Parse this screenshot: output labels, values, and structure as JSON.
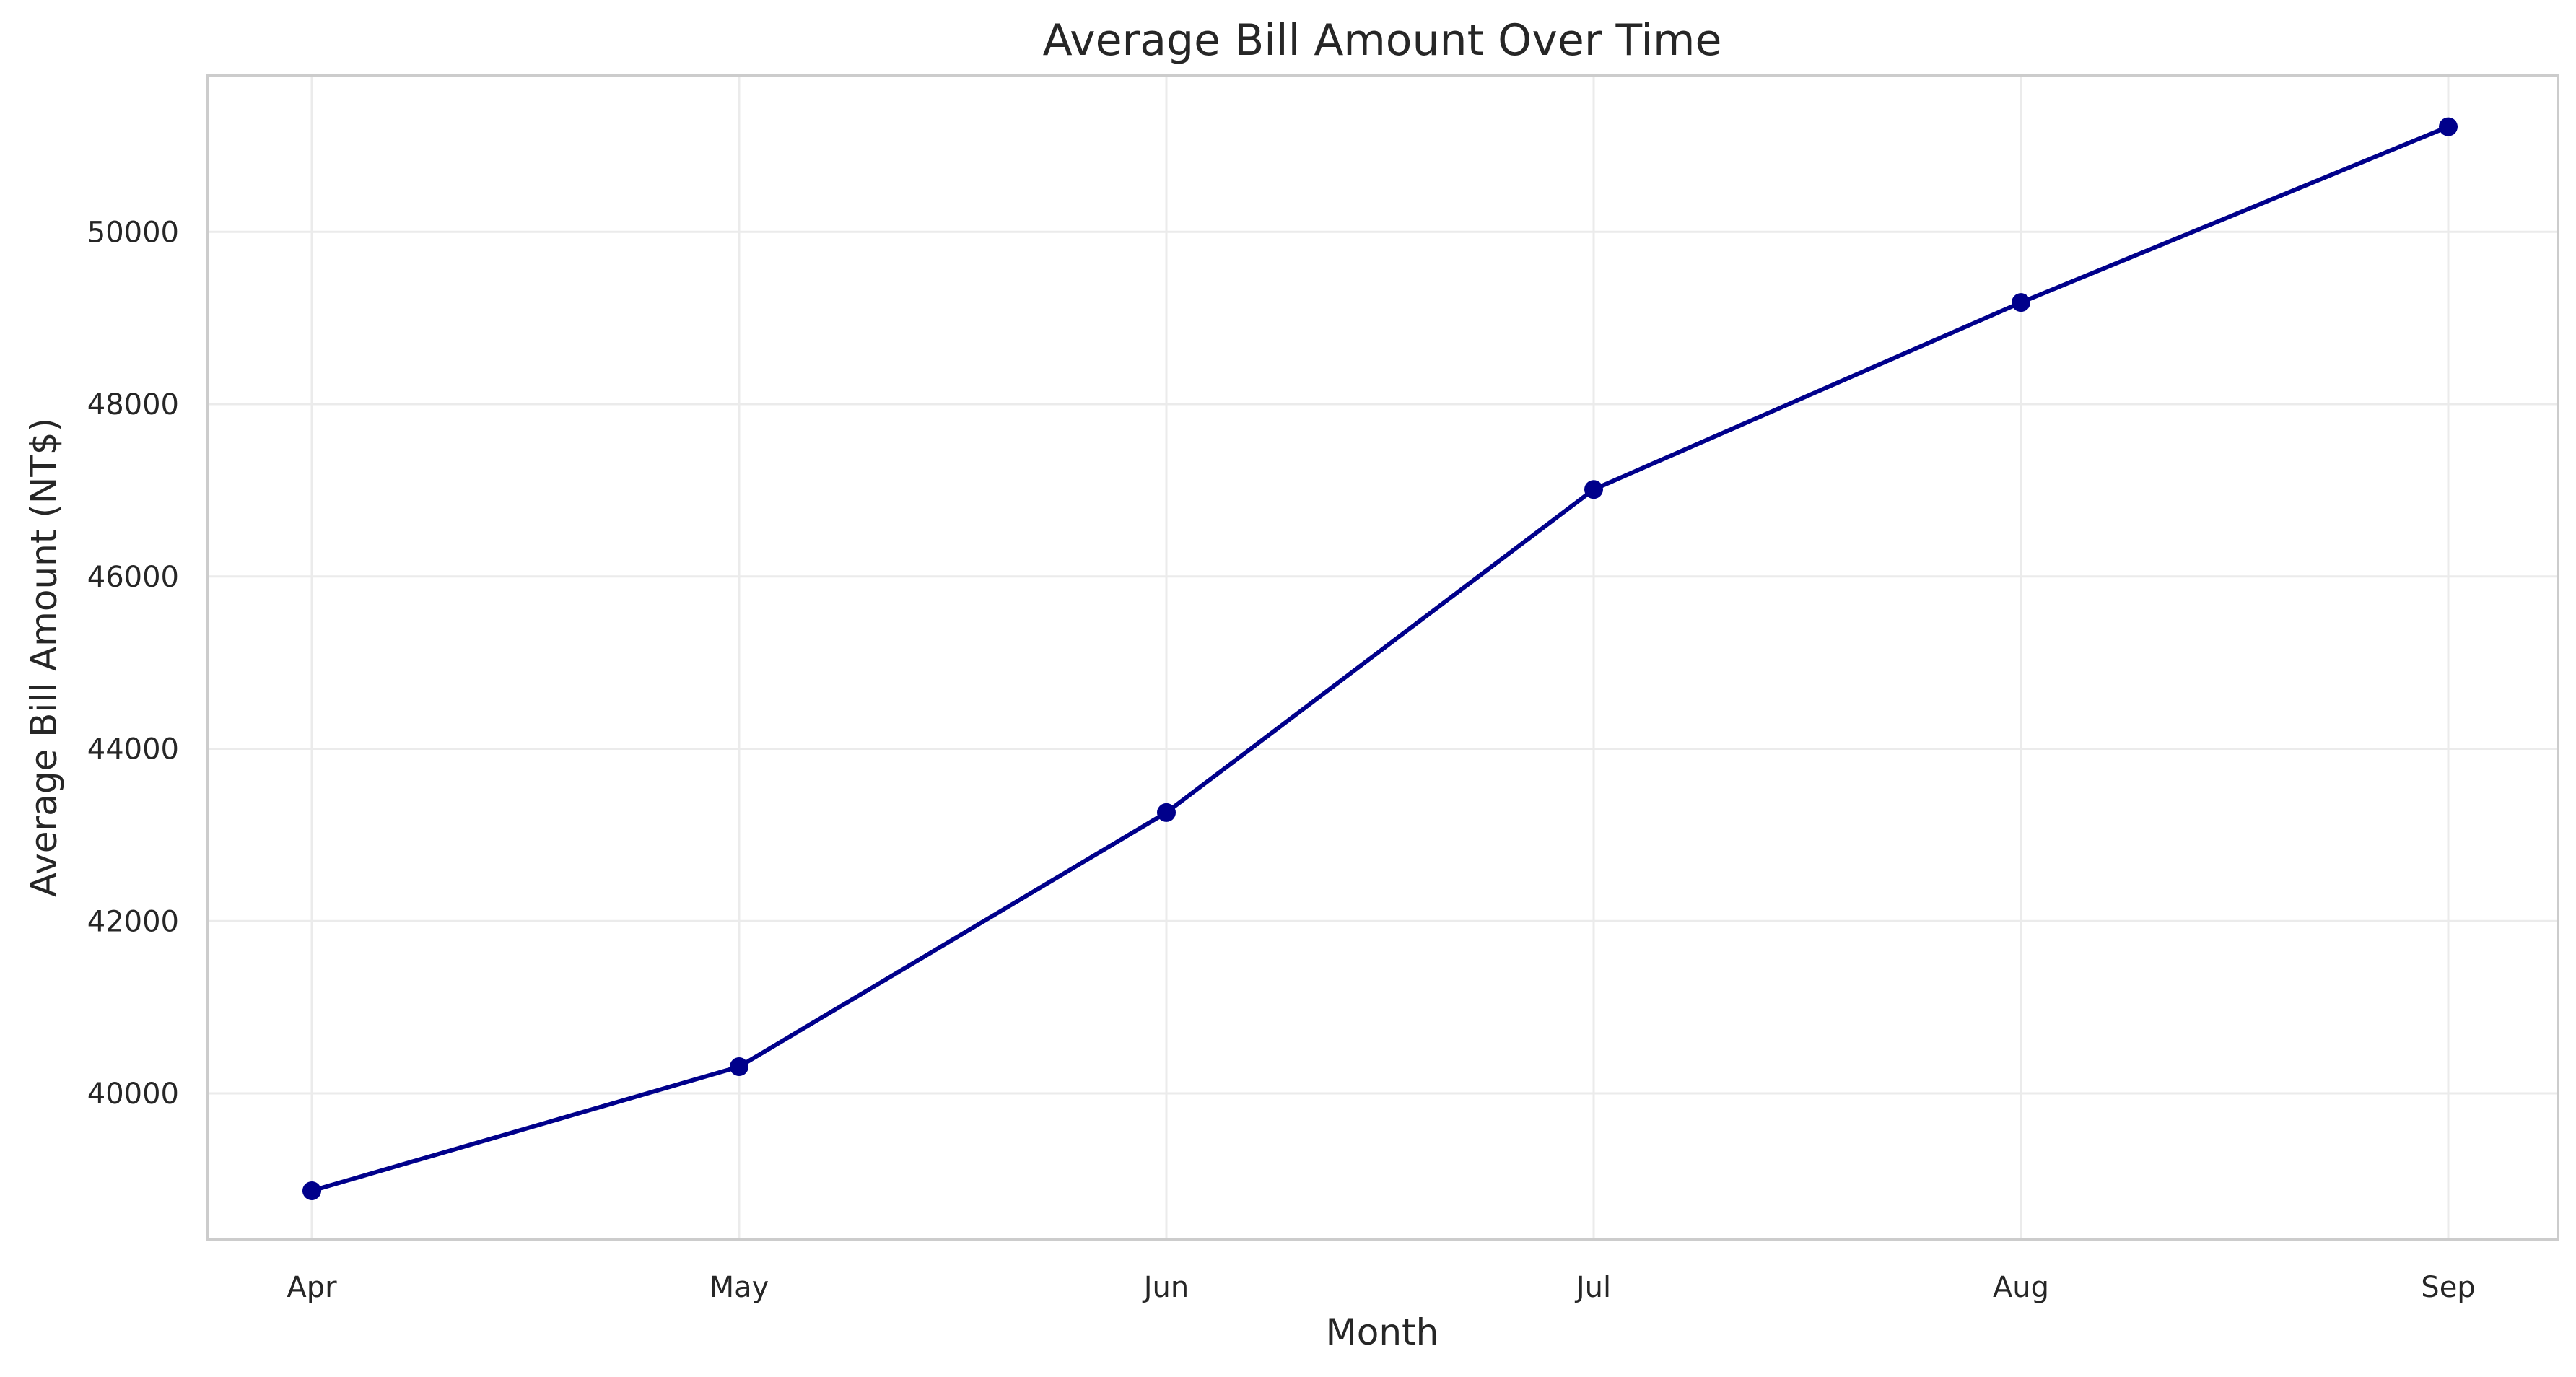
{
  "chart_data": {
    "type": "line",
    "title": "Average Bill Amount Over Time",
    "xlabel": "Month",
    "ylabel": "Average Bill Amount (NT$)",
    "categories": [
      "Apr",
      "May",
      "Jun",
      "Jul",
      "Aug",
      "Sep"
    ],
    "series": [
      {
        "name": "",
        "values": [
          38870,
          40310,
          43260,
          47010,
          49180,
          51220
        ],
        "color": "#00008b",
        "marker": "circle"
      }
    ],
    "yticks": [
      40000,
      42000,
      44000,
      46000,
      48000,
      50000
    ],
    "ylim": [
      38300,
      51820
    ],
    "grid": true,
    "legend": "none"
  }
}
